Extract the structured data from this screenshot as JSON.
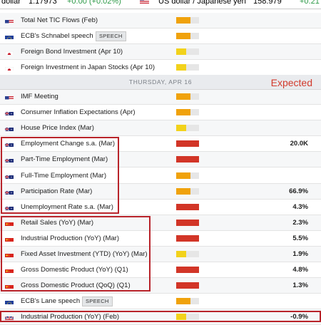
{
  "ticker": {
    "left_name": "dollar",
    "left_price": "1.17973",
    "left_change": "+0.00 (+0.02%)",
    "right_name": "US dollar / Japanese yen",
    "right_price": "158.979",
    "right_change": "+0.21"
  },
  "day_header": "THURSDAY, APR 16",
  "annotation": "Expected",
  "colors": {
    "bar_low": "#f2d21b",
    "bar_mid": "#f0a20c",
    "bar_high": "#d23527",
    "annotation": "#d23a2c",
    "box": "#b8232a"
  },
  "rows": [
    {
      "flag": "us",
      "event": "Total Net TIC Flows (Feb)",
      "importance": "medium",
      "value": ""
    },
    {
      "flag": "eu",
      "event": "ECB's Schnabel speech",
      "badge": "SPEECH",
      "importance": "medium",
      "value": ""
    },
    {
      "flag": "jp",
      "event": "Foreign Bond Investment (Apr 10)",
      "importance": "low",
      "value": ""
    },
    {
      "flag": "jp",
      "event": "Foreign Investment in Japan Stocks (Apr 10)",
      "importance": "low",
      "value": ""
    },
    {
      "flag": "us",
      "event": "IMF Meeting",
      "importance": "medium",
      "value": ""
    },
    {
      "flag": "au",
      "event": "Consumer Inflation Expectations (Apr)",
      "importance": "medium",
      "value": ""
    },
    {
      "flag": "au",
      "event": "House Price Index (Mar)",
      "importance": "low",
      "value": ""
    },
    {
      "flag": "au",
      "event": "Employment Change s.a. (Mar)",
      "importance": "high",
      "value": "20.0K"
    },
    {
      "flag": "au",
      "event": "Part-Time Employment (Mar)",
      "importance": "high",
      "value": ""
    },
    {
      "flag": "au",
      "event": "Full-Time Employment (Mar)",
      "importance": "medium",
      "value": ""
    },
    {
      "flag": "au",
      "event": "Participation Rate (Mar)",
      "importance": "medium",
      "value": "66.9%"
    },
    {
      "flag": "au",
      "event": "Unemployment Rate s.a. (Mar)",
      "importance": "high",
      "value": "4.3%"
    },
    {
      "flag": "cn",
      "event": "Retail Sales (YoY) (Mar)",
      "importance": "high",
      "value": "2.3%"
    },
    {
      "flag": "cn",
      "event": "Industrial Production (YoY) (Mar)",
      "importance": "high",
      "value": "5.5%"
    },
    {
      "flag": "cn",
      "event": "Fixed Asset Investment (YTD) (YoY) (Mar)",
      "importance": "low",
      "value": "1.9%"
    },
    {
      "flag": "cn",
      "event": "Gross Domestic Product (YoY) (Q1)",
      "importance": "high",
      "value": "4.8%"
    },
    {
      "flag": "cn",
      "event": "Gross Domestic Product (QoQ) (Q1)",
      "importance": "high",
      "value": "1.3%"
    },
    {
      "flag": "eu",
      "event": "ECB's Lane speech",
      "badge": "SPEECH",
      "importance": "medium",
      "value": ""
    },
    {
      "flag": "uk",
      "event": "Industrial Production (YoY) (Feb)",
      "importance": "low",
      "value": "-0.9%"
    }
  ]
}
